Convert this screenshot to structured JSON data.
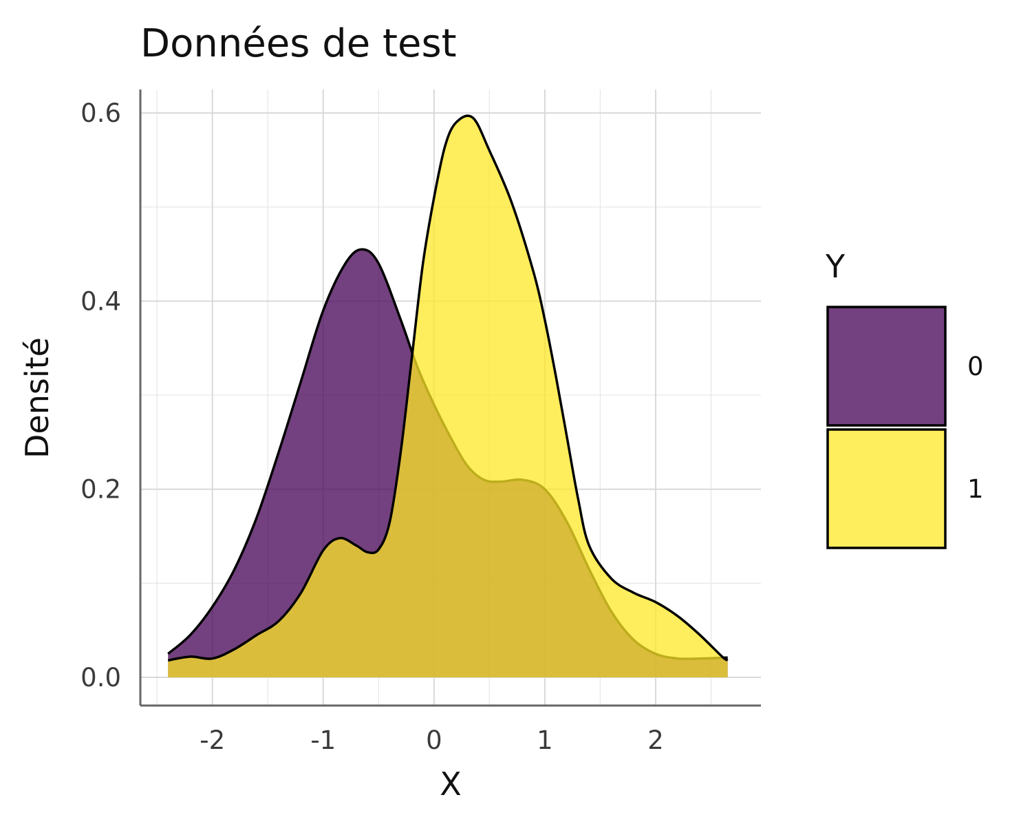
{
  "chart_data": {
    "type": "area",
    "title": "Données de test",
    "xlabel": "X",
    "ylabel": "Densité",
    "xlim": [
      -2.65,
      2.95
    ],
    "ylim": [
      -0.03,
      0.625
    ],
    "x_ticks": [
      -2,
      -1,
      0,
      1,
      2
    ],
    "x_tick_labels": [
      "-2",
      "-1",
      "0",
      "1",
      "2"
    ],
    "y_ticks": [
      0.0,
      0.2,
      0.4,
      0.6
    ],
    "y_tick_labels": [
      "0.0",
      "0.2",
      "0.4",
      "0.6"
    ],
    "grid": true,
    "legend": {
      "title": "Y",
      "position": "right"
    },
    "series": [
      {
        "name": "0",
        "color": "#440154",
        "x": [
          -2.4,
          -2.2,
          -2.0,
          -1.8,
          -1.6,
          -1.4,
          -1.2,
          -1.0,
          -0.8,
          -0.65,
          -0.5,
          -0.3,
          -0.15,
          0.0,
          0.15,
          0.3,
          0.45,
          0.6,
          0.8,
          1.0,
          1.2,
          1.4,
          1.6,
          1.8,
          2.0,
          2.2,
          2.4,
          2.65
        ],
        "values": [
          0.025,
          0.045,
          0.075,
          0.115,
          0.17,
          0.24,
          0.315,
          0.39,
          0.44,
          0.455,
          0.44,
          0.38,
          0.33,
          0.29,
          0.255,
          0.225,
          0.21,
          0.208,
          0.21,
          0.2,
          0.165,
          0.115,
          0.07,
          0.04,
          0.025,
          0.02,
          0.02,
          0.021
        ]
      },
      {
        "name": "1",
        "color": "#fde725",
        "x": [
          -2.4,
          -2.2,
          -2.0,
          -1.8,
          -1.6,
          -1.4,
          -1.2,
          -1.0,
          -0.85,
          -0.7,
          -0.6,
          -0.5,
          -0.4,
          -0.3,
          -0.2,
          -0.1,
          0.0,
          0.1,
          0.2,
          0.35,
          0.5,
          0.7,
          0.9,
          1.0,
          1.1,
          1.2,
          1.3,
          1.4,
          1.6,
          1.8,
          2.0,
          2.2,
          2.4,
          2.6,
          2.65
        ],
        "values": [
          0.018,
          0.022,
          0.02,
          0.03,
          0.045,
          0.06,
          0.09,
          0.135,
          0.148,
          0.14,
          0.133,
          0.136,
          0.165,
          0.24,
          0.34,
          0.44,
          0.51,
          0.565,
          0.59,
          0.595,
          0.56,
          0.505,
          0.43,
          0.38,
          0.32,
          0.255,
          0.19,
          0.14,
          0.105,
          0.09,
          0.08,
          0.065,
          0.045,
          0.022,
          0.018
        ]
      }
    ]
  }
}
